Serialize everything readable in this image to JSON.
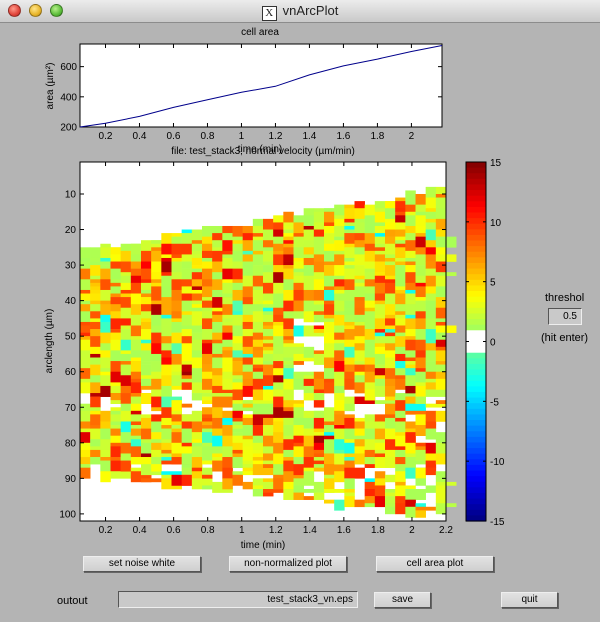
{
  "window": {
    "title": "vnArcPlot"
  },
  "charts": {
    "area": {
      "title": "cell area",
      "ylabel": "area (µm²)",
      "xlabel": "time (min)",
      "xlim": [
        0.05,
        2.18
      ],
      "ylim": [
        200,
        750
      ],
      "yticks": [
        200,
        400,
        600
      ],
      "xticks": [
        0.2,
        0.4,
        0.6,
        0.8,
        1,
        1.2,
        1.4,
        1.6,
        1.8,
        2
      ],
      "line_color": "#00008b"
    },
    "heatmap": {
      "title": "file: test_stack3; normal velocity (µm/min)",
      "ylabel": "arclength (µm)",
      "xlabel": "time (min)",
      "xlim": [
        0.05,
        2.2
      ],
      "ylim": [
        1,
        102
      ],
      "xticks": [
        0.2,
        0.4,
        0.6,
        0.8,
        1,
        1.2,
        1.4,
        1.6,
        1.8,
        2,
        2.2
      ],
      "yticks": [
        10,
        20,
        30,
        40,
        50,
        60,
        70,
        80,
        90,
        100
      ],
      "colorbar_ticks": [
        15,
        10,
        5,
        0,
        -5,
        -10,
        -15
      ],
      "clim": [
        -15,
        15
      ]
    }
  },
  "chart_data": [
    {
      "type": "line",
      "title": "cell area",
      "xlabel": "time (min)",
      "ylabel": "area (µm²)",
      "x": [
        0.05,
        0.2,
        0.4,
        0.6,
        0.8,
        1.0,
        1.2,
        1.4,
        1.6,
        1.8,
        2.0,
        2.18
      ],
      "series": [
        {
          "values": [
            200,
            225,
            270,
            330,
            380,
            430,
            470,
            545,
            605,
            650,
            700,
            740
          ]
        }
      ],
      "xlim": [
        0.05,
        2.18
      ],
      "ylim": [
        200,
        750
      ]
    },
    {
      "type": "heatmap",
      "title": "file: test_stack3; normal velocity (µm/min)",
      "xlabel": "time (min)",
      "ylabel": "arclength (µm)",
      "xlim": [
        0.05,
        2.2
      ],
      "ylim": [
        1,
        102
      ],
      "clim": [
        -15,
        15
      ],
      "colorscale": "jet with near-zero values shown white",
      "threshold": 0.5
    }
  ],
  "controls": {
    "threshold_label": "threshol",
    "threshold_value": "0.5",
    "threshold_hint": "(hit enter)",
    "set_noise_white": "set noise white",
    "non_normalized_plot": "non-normalized plot",
    "cell_area_plot": "cell area plot",
    "output_label": "outout",
    "output_file": "test_stack3_vn.eps",
    "save": "save",
    "quit": "quit"
  }
}
